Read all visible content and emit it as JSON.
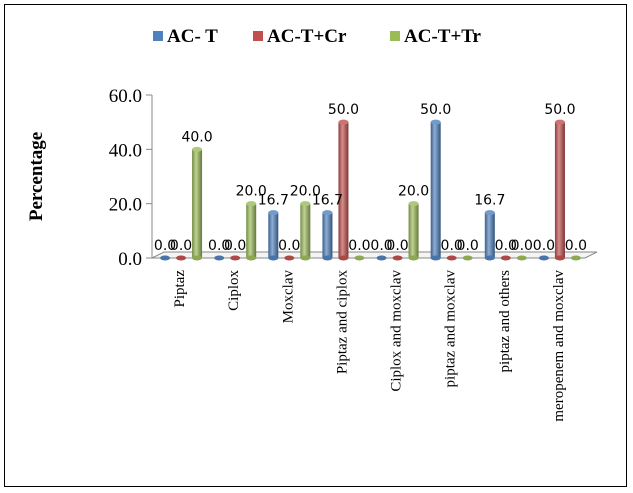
{
  "chart_data": {
    "type": "bar",
    "categories": [
      "Piptaz",
      "Ciplox",
      "Moxclav",
      "Piptaz and ciplox",
      "Ciplox and moxclav",
      "piptaz and moxclav",
      "piptaz and others",
      "meropenem and moxclav"
    ],
    "series": [
      {
        "name": "AC- T",
        "color": "#4F81BD",
        "values": [
          0.0,
          0.0,
          16.7,
          16.7,
          0.0,
          50.0,
          16.7,
          0.0
        ],
        "labels": [
          "0.0",
          "0.0",
          "16.7",
          "16.7",
          "0.0",
          "50.0",
          "16.7",
          "0.0"
        ]
      },
      {
        "name": "AC-T+Cr",
        "color": "#C0504D",
        "values": [
          0.0,
          0.0,
          0.0,
          50.0,
          0.0,
          0.0,
          0.0,
          50.0
        ],
        "labels": [
          "0.0",
          "0.0",
          "0.0",
          "50.0",
          "0.0",
          "0.0",
          "0.0",
          "50.0"
        ]
      },
      {
        "name": "AC-T+Tr",
        "color": "#9BBB59",
        "values": [
          40.0,
          20.0,
          20.0,
          0.0,
          20.0,
          0.0,
          0.0,
          0.0
        ],
        "labels": [
          "40.0",
          "20.0",
          "20.0",
          "0.0",
          "20.0",
          "0.0",
          "0.0",
          "0.0"
        ]
      }
    ],
    "ylabel": "Percentage",
    "xlabel": "",
    "ylim": [
      0,
      60
    ],
    "yticks": [
      "0.0",
      "20.0",
      "40.0",
      "60.0"
    ],
    "legend_position": "top",
    "grid": false
  }
}
